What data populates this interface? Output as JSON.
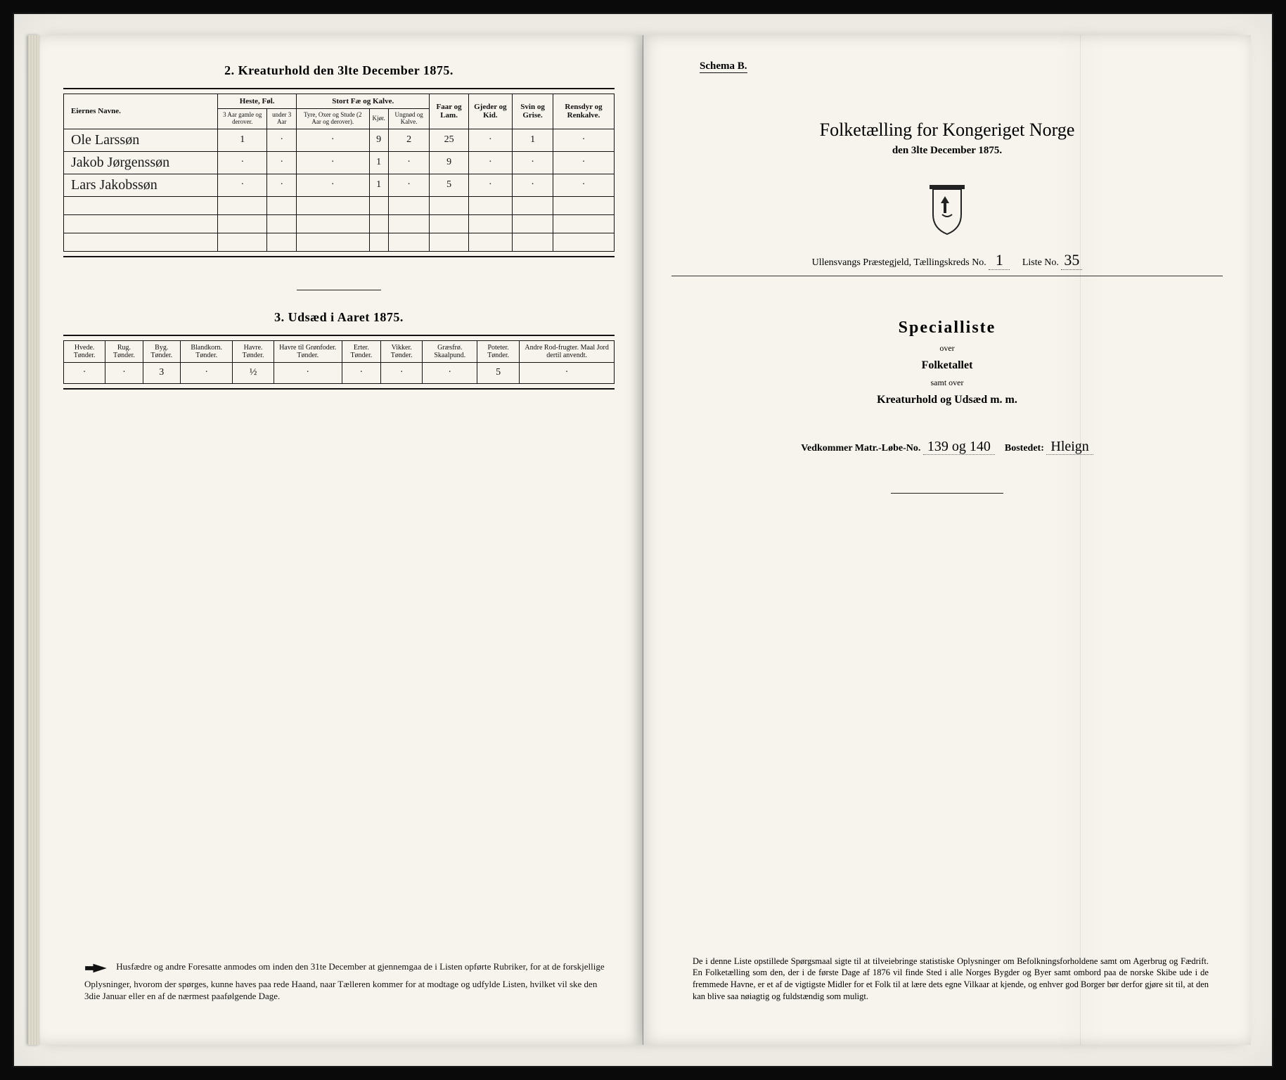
{
  "left": {
    "section2": {
      "title": "2.  Kreaturhold den 3lte December 1875.",
      "group_headers": [
        "Heste, Føl.",
        "Stort Fæ og Kalve."
      ],
      "simple_headers": [
        "Faar og Lam.",
        "Gjeder og Kid.",
        "Svin og Grise.",
        "Rensdyr og Renkalve."
      ],
      "owner_header": "Eiernes Navne.",
      "sub_heste": [
        "3 Aar gamle og derover.",
        "under 3 Aar"
      ],
      "sub_fae": [
        "Tyre, Oxer og Stude (2 Aar og derover).",
        "Kjør.",
        "Ungnød og Kalve."
      ],
      "rows": [
        {
          "name": "Ole Larssøn",
          "c": [
            "1",
            "·",
            "·",
            "9",
            "2",
            "25",
            "·",
            "1",
            "·"
          ]
        },
        {
          "name": "Jakob Jørgenssøn",
          "c": [
            "·",
            "·",
            "·",
            "1",
            "·",
            "9",
            "·",
            "·",
            "·"
          ]
        },
        {
          "name": "Lars Jakobssøn",
          "c": [
            "·",
            "·",
            "·",
            "1",
            "·",
            "5",
            "·",
            "·",
            "·"
          ]
        }
      ]
    },
    "section3": {
      "title": "3.  Udsæd i Aaret 1875.",
      "headers": [
        "Hvede. Tønder.",
        "Rug. Tønder.",
        "Byg. Tønder.",
        "Blandkorn. Tønder.",
        "Havre. Tønder.",
        "Havre til Grønfoder. Tønder.",
        "Erter. Tønder.",
        "Vikker. Tønder.",
        "Græsfrø. Skaalpund.",
        "Poteter. Tønder.",
        "Andre Rod-frugter. Maal Jord dertil anvendt."
      ],
      "values": [
        "·",
        "·",
        "3",
        "·",
        "½",
        "·",
        "·",
        "·",
        "·",
        "5",
        "·"
      ]
    },
    "footer": "Husfædre og andre Foresatte anmodes om inden den 31te December at gjennemgaa de i Listen opførte Rubriker, for at de forskjellige Oplysninger, hvorom der spørges, kunne haves paa rede Haand, naar Tælleren kommer for at modtage og udfylde Listen, hvilket vil ske den 3die Januar eller en af de nærmest paafølgende Dage."
  },
  "right": {
    "schema": "Schema B.",
    "title": "Folketælling for Kongeriget Norge",
    "subtitle": "den 3lte December 1875.",
    "meta": {
      "prefix": "Ullensvangs Præstegjeld,  Tællingskreds No.",
      "kreds": "1",
      "liste_label": "Liste No.",
      "liste": "35"
    },
    "special": {
      "big": "Specialliste",
      "l1": "over",
      "l2": "Folketallet",
      "l3": "samt over",
      "l4": "Kreaturhold og Udsæd m. m."
    },
    "matr": {
      "label1": "Vedkommer Matr.-Løbe-No.",
      "val1": "139 og 140",
      "label2": "Bostedet:",
      "val2": "Hleign"
    },
    "footer": "De i denne Liste opstillede Spørgsmaal sigte til at tilveiebringe statistiske Oplysninger om Befolkningsforholdene samt om Agerbrug og Fædrift.  En Folketælling som den, der i de første Dage af 1876 vil finde Sted i alle Norges Bygder og Byer samt ombord paa de norske Skibe ude i de fremmede Havne, er et af de vigtigste Midler for et Folk til at lære dets egne Vilkaar at kjende, og enhver god Borger bør derfor gjøre sit til, at den kan blive saa nøiagtig og fuldstændig som muligt."
  }
}
